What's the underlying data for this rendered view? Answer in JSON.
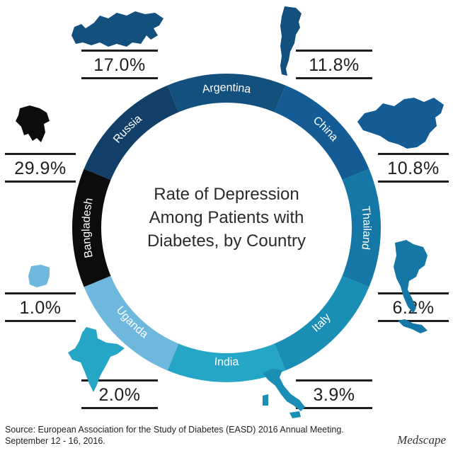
{
  "chart_data": {
    "type": "pie",
    "title_lines": [
      "Rate of Depression",
      "Among Patients with",
      "Diabetes, by Country"
    ],
    "categories": [
      "Russia",
      "Argentina",
      "China",
      "Thailand",
      "Italy",
      "India",
      "Uganda",
      "Bangladesh"
    ],
    "values": [
      17.0,
      11.8,
      10.8,
      6.2,
      3.9,
      2.0,
      1.0,
      29.9
    ],
    "value_labels": [
      "17.0%",
      "11.8%",
      "10.8%",
      "6.2%",
      "3.9%",
      "2.0%",
      "1.0%",
      "29.9%"
    ],
    "colors": [
      "#123f67",
      "#14507d",
      "#145c95",
      "#1477a6",
      "#1a8eb5",
      "#26a6c6",
      "#6eb8dd",
      "#0c0c0c"
    ]
  },
  "source_text": "Source: European Association for the Study of Diabetes (EASD) 2016 Annual Meeting. September 12 - 16, 2016.",
  "brand": "Medscape"
}
